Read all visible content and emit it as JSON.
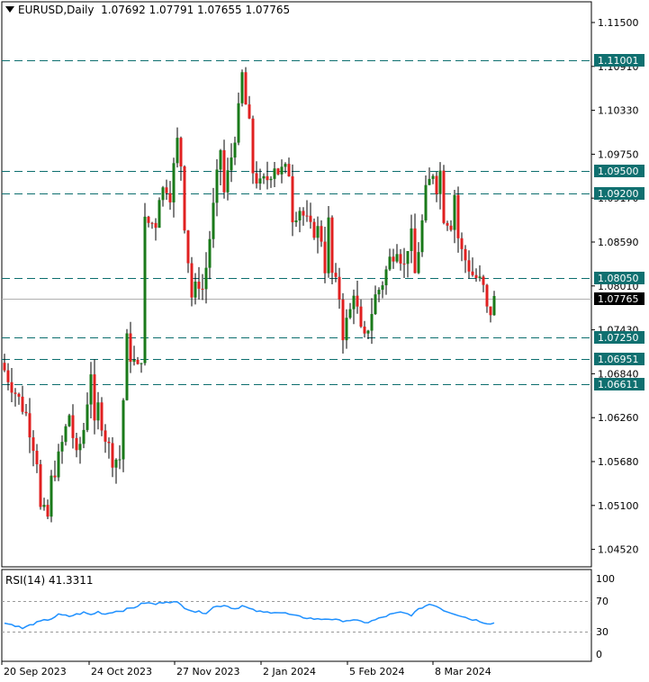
{
  "header": {
    "symbol": "EURUSD,Daily",
    "ohlc": "1.07692 1.07791 1.07655 1.07765"
  },
  "rsi": {
    "label": "RSI(14) 41.3311",
    "period": 14,
    "value": 41.3311,
    "axis_labels": [
      "100",
      "70",
      "30",
      "0"
    ],
    "levels": [
      70,
      30
    ]
  },
  "colors": {
    "bull": "#1a7a1a",
    "bear": "#e02020",
    "wick": "#000000",
    "level_line": "#0c6e6e",
    "badge_bg": "#107070",
    "current_price_bg": "#000000",
    "rsi_line": "#1e90ff"
  },
  "chart_data": {
    "type": "candlestick",
    "symbol": "EURUSD",
    "timeframe": "Daily",
    "price_axis_ticks": [
      "1.11500",
      "1.10910",
      "1.10330",
      "1.09750",
      "1.09170",
      "1.08590",
      "1.08010",
      "1.07430",
      "1.06840",
      "1.06260",
      "1.05680",
      "1.05100",
      "1.04520"
    ],
    "ylim": [
      1.0413,
      1.118
    ],
    "time_axis_labels": [
      "20 Sep 2023",
      "24 Oct 2023",
      "27 Nov 2023",
      "2 Jan 2024",
      "5 Feb 2024",
      "8 Mar 2024"
    ],
    "horizontal_levels": [
      {
        "price": 1.11001,
        "label": "1.11001"
      },
      {
        "price": 1.095,
        "label": "1.09500"
      },
      {
        "price": 1.092,
        "label": "1.09200"
      },
      {
        "price": 1.0805,
        "label": "1.08050"
      },
      {
        "price": 1.0725,
        "label": "1.07250"
      },
      {
        "price": 1.06951,
        "label": "1.06951"
      },
      {
        "price": 1.06611,
        "label": "1.06611"
      }
    ],
    "current_price": {
      "price": 1.07765,
      "label": "1.07765"
    },
    "close_path": [
      [
        0,
        1.068
      ],
      [
        3,
        1.065
      ],
      [
        6,
        1.062
      ],
      [
        9,
        1.056
      ],
      [
        10,
        1.049
      ],
      [
        12,
        1.048
      ],
      [
        13,
        1.053
      ],
      [
        15,
        1.056
      ],
      [
        16,
        1.058
      ],
      [
        18,
        1.062
      ],
      [
        20,
        1.056
      ],
      [
        22,
        1.06
      ],
      [
        24,
        1.068
      ],
      [
        25,
        1.06
      ],
      [
        26,
        1.063
      ],
      [
        28,
        1.059
      ],
      [
        30,
        1.056
      ],
      [
        32,
        1.056
      ],
      [
        33,
        1.064
      ],
      [
        34,
        1.072
      ],
      [
        35,
        1.07
      ],
      [
        37,
        1.068
      ],
      [
        38,
        1.07
      ],
      [
        39,
        1.088
      ],
      [
        40,
        1.088
      ],
      [
        42,
        1.088
      ],
      [
        43,
        1.092
      ],
      [
        45,
        1.093
      ],
      [
        46,
        1.092
      ],
      [
        48,
        1.099
      ],
      [
        49,
        1.096
      ],
      [
        50,
        1.088
      ],
      [
        52,
        1.078
      ],
      [
        54,
        1.08
      ],
      [
        55,
        1.079
      ],
      [
        56,
        1.082
      ],
      [
        58,
        1.09
      ],
      [
        60,
        1.098
      ],
      [
        61,
        1.092
      ],
      [
        63,
        1.097
      ],
      [
        65,
        1.103
      ],
      [
        66,
        1.108
      ],
      [
        67,
        1.104
      ],
      [
        68,
        1.101
      ],
      [
        69,
        1.095
      ],
      [
        71,
        1.093
      ],
      [
        73,
        1.094
      ],
      [
        75,
        1.096
      ],
      [
        76,
        1.095
      ],
      [
        78,
        1.095
      ],
      [
        79,
        1.095
      ],
      [
        80,
        1.089
      ],
      [
        82,
        1.09
      ],
      [
        84,
        1.088
      ],
      [
        85,
        1.087
      ],
      [
        87,
        1.087
      ],
      [
        88,
        1.086
      ],
      [
        89,
        1.082
      ],
      [
        90,
        1.088
      ],
      [
        91,
        1.081
      ],
      [
        93,
        1.078
      ],
      [
        94,
        1.073
      ],
      [
        96,
        1.076
      ],
      [
        97,
        1.079
      ],
      [
        98,
        1.076
      ],
      [
        99,
        1.073
      ],
      [
        100,
        1.072
      ],
      [
        101,
        1.074
      ],
      [
        103,
        1.078
      ],
      [
        105,
        1.08
      ],
      [
        107,
        1.083
      ],
      [
        109,
        1.085
      ],
      [
        111,
        1.082
      ],
      [
        112,
        1.085
      ],
      [
        113,
        1.086
      ],
      [
        114,
        1.081
      ],
      [
        116,
        1.088
      ],
      [
        117,
        1.092
      ],
      [
        119,
        1.095
      ],
      [
        120,
        1.093
      ],
      [
        121,
        1.095
      ],
      [
        122,
        1.089
      ],
      [
        124,
        1.088
      ],
      [
        125,
        1.092
      ],
      [
        126,
        1.086
      ],
      [
        127,
        1.084
      ],
      [
        129,
        1.082
      ],
      [
        130,
        1.081
      ],
      [
        132,
        1.08
      ],
      [
        133,
        1.079
      ],
      [
        134,
        1.076
      ],
      [
        135,
        1.076
      ],
      [
        136,
        1.0775
      ]
    ],
    "bars": 137,
    "rsi_path": [
      [
        0,
        41
      ],
      [
        3,
        38
      ],
      [
        5,
        34
      ],
      [
        8,
        40
      ],
      [
        10,
        43
      ],
      [
        13,
        47
      ],
      [
        15,
        52
      ],
      [
        18,
        50
      ],
      [
        22,
        55
      ],
      [
        24,
        52
      ],
      [
        26,
        56
      ],
      [
        28,
        53
      ],
      [
        30,
        56
      ],
      [
        33,
        58
      ],
      [
        36,
        62
      ],
      [
        39,
        68
      ],
      [
        42,
        66
      ],
      [
        45,
        70
      ],
      [
        48,
        68
      ],
      [
        50,
        62
      ],
      [
        53,
        56
      ],
      [
        56,
        55
      ],
      [
        58,
        62
      ],
      [
        61,
        65
      ],
      [
        64,
        60
      ],
      [
        66,
        64
      ],
      [
        69,
        58
      ],
      [
        72,
        55
      ],
      [
        75,
        56
      ],
      [
        78,
        54
      ],
      [
        81,
        50
      ],
      [
        84,
        48
      ],
      [
        87,
        46
      ],
      [
        90,
        47
      ],
      [
        93,
        44
      ],
      [
        96,
        45
      ],
      [
        99,
        43
      ],
      [
        101,
        42
      ],
      [
        104,
        47
      ],
      [
        107,
        52
      ],
      [
        110,
        55
      ],
      [
        113,
        52
      ],
      [
        116,
        62
      ],
      [
        118,
        66
      ],
      [
        120,
        64
      ],
      [
        122,
        58
      ],
      [
        124,
        55
      ],
      [
        126,
        52
      ],
      [
        129,
        47
      ],
      [
        131,
        45
      ],
      [
        134,
        41
      ],
      [
        136,
        41
      ]
    ]
  }
}
